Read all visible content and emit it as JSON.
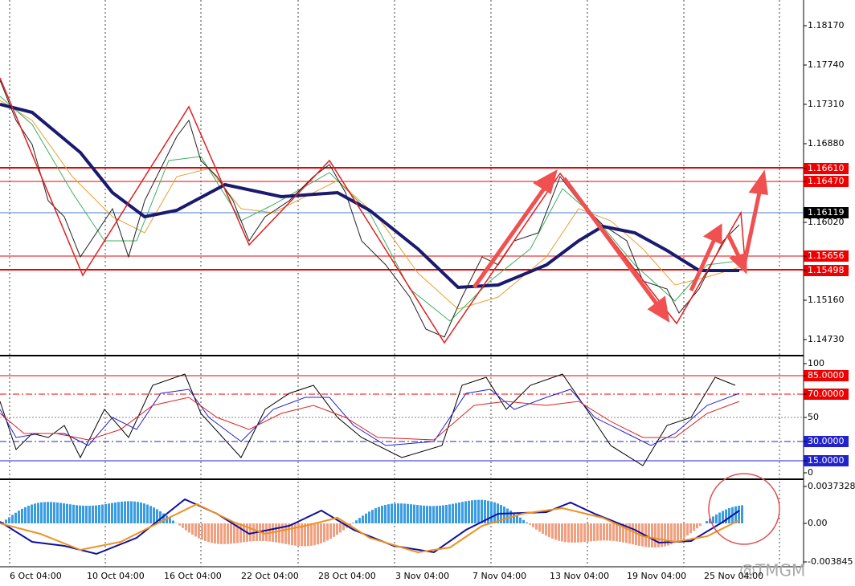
{
  "price_axis": [
    "1.18170",
    "1.17740",
    "1.17310",
    "1.16880",
    "1.16610",
    "1.16470",
    "1.16119",
    "1.16020",
    "1.15656",
    "1.15498",
    "1.15160",
    "1.14730"
  ],
  "oscillator_axis": [
    "100",
    "85.0000",
    "70.0000",
    "50",
    "30.0000",
    "15.0000",
    "0"
  ],
  "macd_axis": [
    "0.0037328",
    "0.00",
    "-0.003845"
  ],
  "time_axis": [
    "6 Oct 04:00",
    "10 Oct 04:00",
    "16 Oct 04:00",
    "22 Oct 04:00",
    "28 Oct 04:00",
    "3 Nov 04:00",
    "7 Nov 04:00",
    "13 Nov 04:00",
    "19 Nov 04:00",
    "25 Nov 04:00"
  ],
  "watermark": "@TMGM"
}
